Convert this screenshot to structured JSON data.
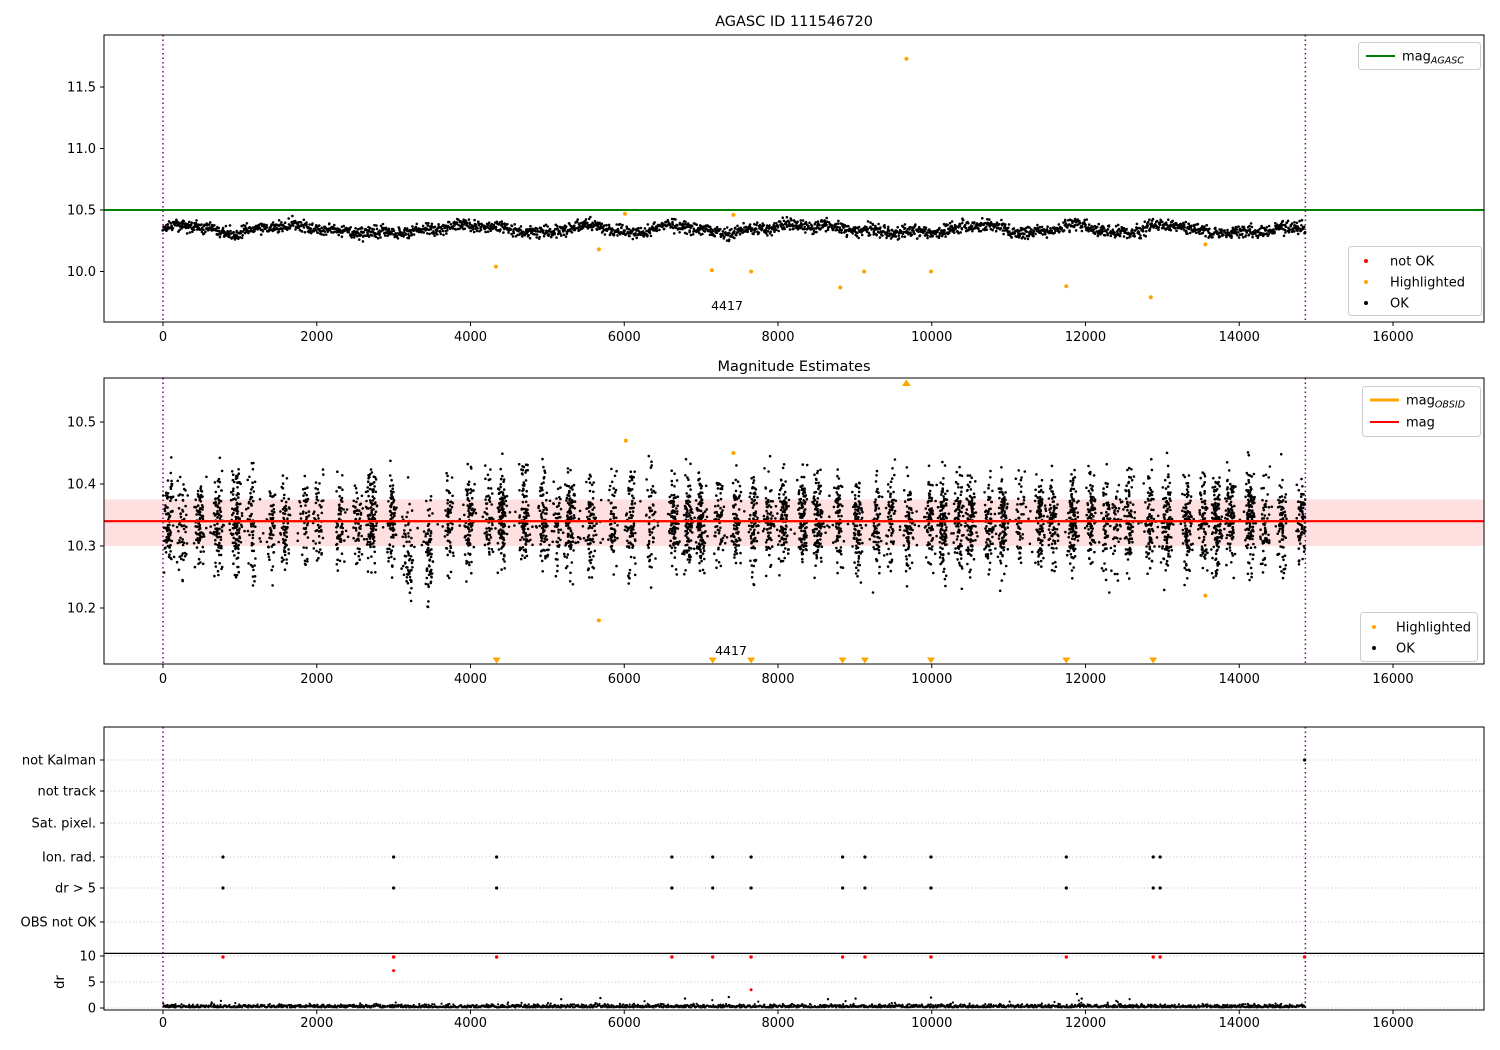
{
  "figure": {
    "background": "#ffffff"
  },
  "colors": {
    "ok": "#000000",
    "not_ok": "#ff0000",
    "highlighted": "#ffa500",
    "mag_agasc_line": "#008000",
    "mag_line": "#ff0000",
    "mag_obsid_line": "#ffa500",
    "mag_band": "rgba(255,0,0,0.12)",
    "obsid_boundary": "#800080",
    "grid": "#bdbdbd",
    "dr_limit_line": "#000000"
  },
  "chart_data": [
    {
      "id": "agasc",
      "type": "scatter",
      "title": "AGASC ID 111546720",
      "xlim": [
        -767,
        17178
      ],
      "ylim": [
        9.59,
        11.92
      ],
      "x_ticks": [
        0,
        2000,
        4000,
        6000,
        8000,
        10000,
        12000,
        14000,
        16000
      ],
      "y_ticks": [
        {
          "v": 11.5,
          "label": "11.5"
        },
        {
          "v": 11.0,
          "label": "11.0"
        },
        {
          "v": 10.5,
          "label": "10.5"
        },
        {
          "v": 10.0,
          "label": "10.0"
        }
      ],
      "mag_agasc": 10.5,
      "obsid_vlines": [
        0,
        14860
      ],
      "ok_series": {
        "n": 2600,
        "x_range": [
          0,
          14860
        ],
        "mean": 10.345,
        "wave_amp": 0.03,
        "noise_sigma": 0.025
      },
      "highlighted_points": [
        [
          4330,
          10.04
        ],
        [
          5670,
          10.18
        ],
        [
          6010,
          10.47
        ],
        [
          7140,
          10.01
        ],
        [
          7420,
          10.46
        ],
        [
          7650,
          10.0
        ],
        [
          8810,
          9.87
        ],
        [
          9120,
          10.0
        ],
        [
          9670,
          11.73
        ],
        [
          9990,
          10.0
        ],
        [
          11750,
          9.88
        ],
        [
          12850,
          9.79
        ],
        [
          13560,
          10.22
        ]
      ],
      "annotation": {
        "label": "4417",
        "x": 7340,
        "mag": 9.72
      },
      "legend_line": {
        "base": "mag",
        "sub": "AGASC"
      },
      "legend_points": [
        {
          "label": "not OK",
          "color": "#ff0000"
        },
        {
          "label": "Highlighted",
          "color": "#ffa500"
        },
        {
          "label": "OK",
          "color": "#000000"
        }
      ]
    },
    {
      "id": "magnitudes",
      "type": "scatter",
      "title": "Magnitude Estimates",
      "xlim": [
        -767,
        17178
      ],
      "ylim": [
        10.11,
        10.57
      ],
      "x_ticks": [
        0,
        2000,
        4000,
        6000,
        8000,
        10000,
        12000,
        14000,
        16000
      ],
      "y_ticks": [
        {
          "v": 10.5,
          "label": "10.5"
        },
        {
          "v": 10.4,
          "label": "10.4"
        },
        {
          "v": 10.3,
          "label": "10.3"
        },
        {
          "v": 10.2,
          "label": "10.2"
        }
      ],
      "mag_line": 10.34,
      "mag_obsid_line": 10.34,
      "mag_band": [
        10.3,
        10.375
      ],
      "obsid_vlines": [
        0,
        14860
      ],
      "ok_series": {
        "cluster_x_range": [
          0,
          14860
        ],
        "cluster_center_mag": 10.338,
        "cluster_sigma": 0.0375,
        "dip_x_range": [
          3100,
          3500
        ],
        "dip_offset": -0.038,
        "background_n": 320
      },
      "highlighted_points": [
        [
          5670,
          10.18
        ],
        [
          6020,
          10.47
        ],
        [
          7420,
          10.45
        ],
        [
          13560,
          10.22
        ]
      ],
      "clipped_top_x": [
        9670
      ],
      "clipped_bottom_x": [
        4340,
        7150,
        7650,
        8840,
        9130,
        9990,
        11750,
        12880
      ],
      "annotation": {
        "label": "4417",
        "x": 7340,
        "mag": 10.131
      },
      "legend_lines": [
        {
          "base": "mag",
          "sub": "OBSID",
          "color": "#ffa500"
        },
        {
          "base": "mag",
          "sub": "",
          "color": "#ff0000"
        }
      ],
      "legend_points": [
        {
          "label": "Highlighted",
          "color": "#ffa500"
        },
        {
          "label": "OK",
          "color": "#000000"
        }
      ]
    },
    {
      "id": "flags",
      "type": "scatter",
      "xlim": [
        -767,
        17178
      ],
      "x_ticks": [
        0,
        2000,
        4000,
        6000,
        8000,
        10000,
        12000,
        14000,
        16000
      ],
      "categories": [
        "not Kalman",
        "not track",
        "Sat. pixel.",
        "Ion. rad.",
        "dr > 5",
        "OBS not OK"
      ],
      "dr_ticks": [
        {
          "v": 10,
          "label": "10"
        },
        {
          "v": 5,
          "label": "5"
        },
        {
          "v": 0,
          "label": "0"
        }
      ],
      "dr_axis_label": "dr",
      "dr_limit": 10.5,
      "obsid_vlines": [
        0,
        14860
      ],
      "events_x": [
        780,
        3000,
        4340,
        6620,
        7150,
        7650,
        8840,
        9130,
        9990,
        11750,
        12880,
        12970
      ],
      "ion_rad_events_x": [
        780,
        3000,
        4340,
        6620,
        7150,
        7650,
        8840,
        9130,
        9990,
        11750,
        12880,
        12970
      ],
      "dr_gt5_events_x": [
        780,
        3000,
        4340,
        6620,
        7150,
        7650,
        8840,
        9130,
        9990,
        11750,
        12880,
        12970
      ],
      "not_kalman_events_x": [
        14850
      ],
      "dr10_red_x": [
        780,
        3000,
        4340,
        6620,
        7150,
        7650,
        8840,
        9130,
        9990,
        11750,
        12880,
        12970,
        14850
      ],
      "red_extra_points": [
        [
          3000,
          7.2
        ],
        [
          7650,
          3.5
        ]
      ],
      "black_extra_points": [
        [
          5180,
          1.7
        ],
        [
          5690,
          1.9
        ],
        [
          6790,
          1.8
        ],
        [
          7360,
          2.1
        ],
        [
          8650,
          1.7
        ],
        [
          9010,
          1.8
        ],
        [
          9990,
          2.0
        ],
        [
          11890,
          2.7
        ],
        [
          11950,
          1.8
        ]
      ],
      "dr_series": {
        "n": 2200,
        "x_range": [
          0,
          14860
        ],
        "base": 0.1,
        "sigma": 0.35
      }
    }
  ]
}
